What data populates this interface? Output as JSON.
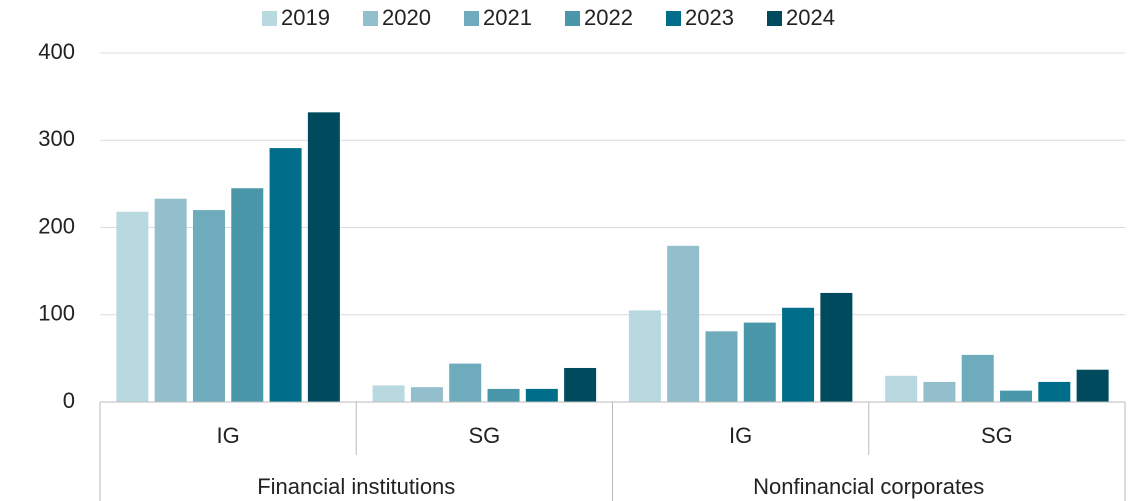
{
  "chart_data": {
    "type": "bar",
    "groups": [
      {
        "name": "Financial institutions",
        "categories": [
          "IG",
          "SG"
        ]
      },
      {
        "name": "Nonfinancial corporates",
        "categories": [
          "IG",
          "SG"
        ]
      }
    ],
    "series": [
      {
        "name": "2019",
        "color": "#b9d9e0",
        "values": [
          218,
          19,
          105,
          30
        ]
      },
      {
        "name": "2020",
        "color": "#93bfcc",
        "values": [
          233,
          17,
          179,
          23
        ]
      },
      {
        "name": "2021",
        "color": "#6eacbd",
        "values": [
          220,
          44,
          81,
          54
        ]
      },
      {
        "name": "2022",
        "color": "#4a97a9",
        "values": [
          245,
          15,
          91,
          13
        ]
      },
      {
        "name": "2023",
        "color": "#006d8a",
        "values": [
          291,
          15,
          108,
          23
        ]
      },
      {
        "name": "2024",
        "color": "#004a5e",
        "values": [
          332,
          39,
          125,
          37
        ]
      }
    ],
    "ylim": [
      0,
      400
    ],
    "yticks": [
      0,
      100,
      200,
      300,
      400
    ],
    "grid": true,
    "legend": "top"
  }
}
